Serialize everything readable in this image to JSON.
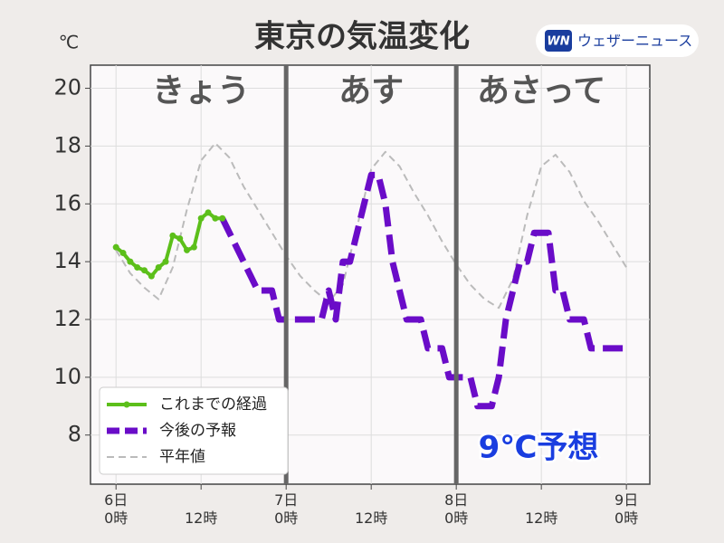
{
  "chart_data": {
    "type": "line",
    "title": "東京の気温変化",
    "y_unit": "℃",
    "logo": {
      "mark": "WN",
      "text": "ウェザーニュース"
    },
    "day_labels": [
      {
        "x": 12,
        "text": "きょう"
      },
      {
        "x": 36,
        "text": "あす"
      },
      {
        "x": 60,
        "text": "あさって"
      }
    ],
    "day_dividers": [
      24,
      48
    ],
    "annotation": "9℃予想",
    "xlim": [
      -3.6,
      75.3
    ],
    "ylim": [
      6.3,
      20.8
    ],
    "yticks": [
      8,
      10,
      12,
      14,
      16,
      18,
      20
    ],
    "xticks": [
      {
        "value": 0,
        "label": "6日\n0時"
      },
      {
        "value": 12,
        "label": "12時"
      },
      {
        "value": 24,
        "label": "7日\n0時"
      },
      {
        "value": 36,
        "label": "12時"
      },
      {
        "value": 48,
        "label": "8日\n0時"
      },
      {
        "value": 60,
        "label": "12時"
      },
      {
        "value": 72,
        "label": "9日\n0時"
      }
    ],
    "grid": true,
    "series": [
      {
        "name": "これまでの経過",
        "color": "#5cbf1a",
        "style": "solid-markers",
        "x": [
          0,
          1,
          2,
          3,
          4,
          5,
          6,
          7,
          8,
          9,
          10,
          11,
          12,
          13,
          14,
          15
        ],
        "values": [
          14.5,
          14.3,
          14.0,
          13.8,
          13.7,
          13.5,
          13.8,
          14.0,
          14.9,
          14.8,
          14.4,
          14.5,
          15.5,
          15.7,
          15.5,
          15.5
        ]
      },
      {
        "name": "今後の予報",
        "color": "#6a0cc8",
        "style": "thick-dash",
        "x": [
          15,
          16,
          17,
          18,
          19,
          20,
          21,
          22,
          23,
          24,
          25,
          26,
          27,
          28,
          29,
          30,
          31,
          32,
          33,
          34,
          35,
          36,
          37,
          38,
          39,
          40,
          41,
          42,
          43,
          44,
          45,
          46,
          47,
          48,
          49,
          50,
          51,
          52,
          53,
          54,
          55,
          56,
          57,
          58,
          59,
          60,
          61,
          62,
          63,
          64,
          65,
          66,
          67,
          68,
          69,
          70,
          71,
          72
        ],
        "values": [
          15.5,
          15.0,
          14.5,
          14.0,
          13.5,
          13.0,
          13.0,
          13.0,
          12,
          12,
          12,
          12,
          12,
          12,
          12,
          13,
          12,
          14,
          14,
          15,
          16,
          17,
          17,
          16,
          14,
          13,
          12,
          12,
          12,
          11,
          11,
          11,
          10,
          10,
          10,
          10,
          9,
          9,
          9,
          10,
          12,
          13,
          14,
          14,
          15,
          15,
          15,
          13,
          13,
          12,
          12,
          12,
          11,
          11,
          11,
          11,
          11,
          11
        ]
      },
      {
        "name": "平年値",
        "color": "#bbbbbb",
        "style": "thin-dash",
        "x": [
          0,
          2,
          4,
          6,
          8,
          10,
          12,
          14,
          16,
          18,
          20,
          22,
          24,
          26,
          28,
          30,
          32,
          34,
          36,
          38,
          40,
          42,
          44,
          46,
          48,
          50,
          52,
          54,
          56,
          58,
          60,
          62,
          64,
          66,
          68,
          70,
          72
        ],
        "values": [
          14.4,
          13.6,
          13.1,
          12.7,
          13.8,
          15.8,
          17.5,
          18.1,
          17.6,
          16.6,
          15.8,
          15.0,
          14.2,
          13.5,
          13.0,
          12.6,
          13.2,
          15.2,
          17.2,
          17.8,
          17.3,
          16.4,
          15.6,
          14.7,
          13.9,
          13.2,
          12.7,
          12.4,
          13.4,
          15.6,
          17.3,
          17.7,
          17.1,
          16.1,
          15.4,
          14.6,
          13.8
        ]
      }
    ]
  }
}
